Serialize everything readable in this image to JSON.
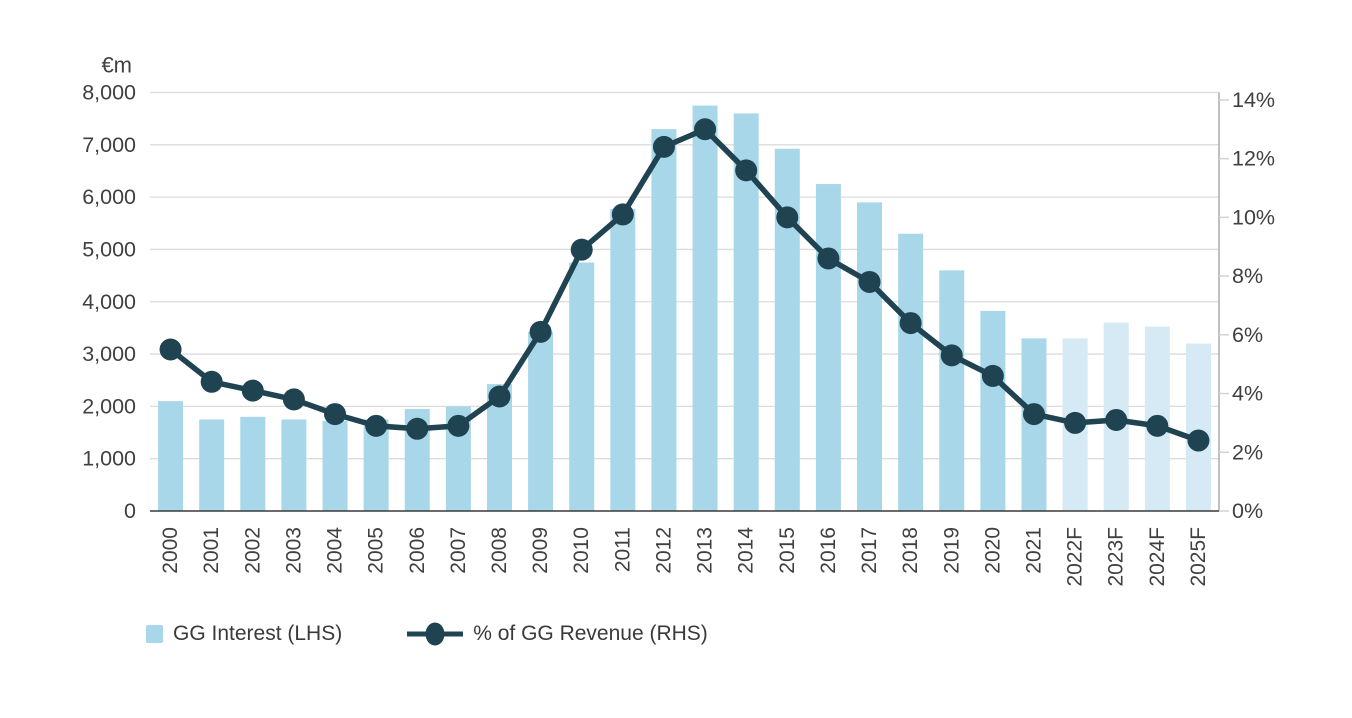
{
  "chart_data": {
    "type": "combo-bar-line",
    "title": "",
    "categories": [
      "2000",
      "2001",
      "2002",
      "2003",
      "2004",
      "2005",
      "2006",
      "2007",
      "2008",
      "2009",
      "2010",
      "2011",
      "2012",
      "2013",
      "2014",
      "2015",
      "2016",
      "2017",
      "2018",
      "2019",
      "2020",
      "2021",
      "2022F",
      "2023F",
      "2024F",
      "2025F"
    ],
    "series": [
      {
        "name": "GG Interest (LHS)",
        "type": "bar",
        "axis": "left",
        "unit": "€m",
        "values": [
          2100,
          1750,
          1800,
          1750,
          1725,
          1750,
          1950,
          2000,
          2425,
          3425,
          4750,
          5775,
          7300,
          7750,
          7600,
          6925,
          6250,
          5900,
          5300,
          4600,
          3825,
          3300,
          3300,
          3600,
          3525,
          3200
        ],
        "forecast_start_index": 22
      },
      {
        "name": "% of GG Revenue (RHS)",
        "type": "line",
        "axis": "right",
        "unit": "%",
        "values": [
          5.5,
          4.4,
          4.1,
          3.8,
          3.3,
          2.9,
          2.8,
          2.9,
          3.9,
          6.1,
          8.9,
          10.1,
          12.4,
          13.0,
          11.6,
          10.0,
          8.6,
          7.8,
          6.4,
          5.3,
          4.6,
          3.3,
          3.0,
          3.1,
          2.9,
          2.4
        ]
      }
    ],
    "left_axis": {
      "title": "€m",
      "min": 0,
      "max": 8000,
      "tick_values": [
        0,
        1000,
        2000,
        3000,
        4000,
        5000,
        6000,
        7000,
        8000
      ],
      "tick_labels": [
        "0",
        "1,000",
        "2,000",
        "3,000",
        "4,000",
        "5,000",
        "6,000",
        "7,000",
        "8,000"
      ]
    },
    "right_axis": {
      "title": "",
      "min": 0,
      "max": 14,
      "tick_values": [
        0,
        2,
        4,
        6,
        8,
        10,
        12,
        14
      ],
      "tick_labels": [
        "0%",
        "2%",
        "4%",
        "6%",
        "8%",
        "10%",
        "12%",
        "14%"
      ]
    },
    "grid": true,
    "legend_position": "bottom",
    "colors": {
      "bar_actual": "#A8D7EA",
      "bar_forecast": "#D5EAF5",
      "line": "#204351",
      "grid": "#DCDCDC",
      "baseline": "#3A3A3A",
      "right_axis_line": "#ABABAB",
      "right_axis_tick": "#D3D3D3",
      "axis_text": "#404040"
    }
  },
  "legend": {
    "items": [
      {
        "label": "GG Interest (LHS)",
        "swatch": "bar-square"
      },
      {
        "label": "% of GG Revenue (RHS)",
        "swatch": "line-dot"
      }
    ]
  }
}
